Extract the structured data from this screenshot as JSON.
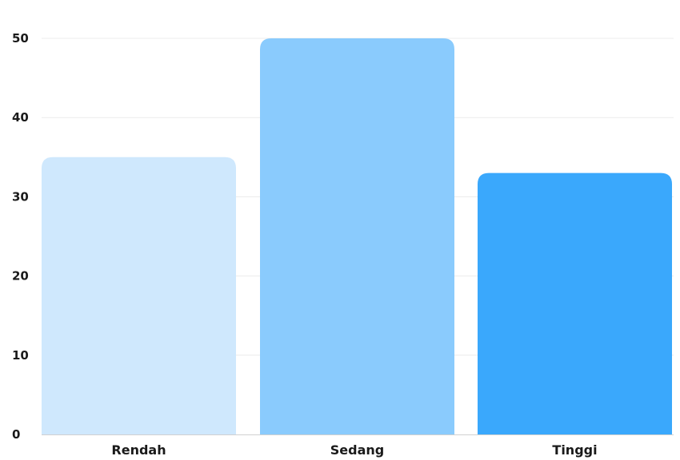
{
  "chart_data": {
    "type": "bar",
    "categories": [
      "Rendah",
      "Sedang",
      "Tinggi"
    ],
    "values": [
      35,
      50,
      33
    ],
    "ylim": [
      0,
      50
    ],
    "yticks": [
      0,
      10,
      20,
      30,
      40,
      50
    ],
    "ytick_labels": [
      "0",
      "10",
      "20",
      "30",
      "40",
      "50"
    ],
    "grid": true,
    "title": "",
    "xlabel": "",
    "ylabel": "",
    "colors": [
      "#cfe8fd",
      "#8acbfd",
      "#3aa8fc"
    ],
    "grid_color": "#ececec",
    "axis_color": "#d0d0d0"
  }
}
